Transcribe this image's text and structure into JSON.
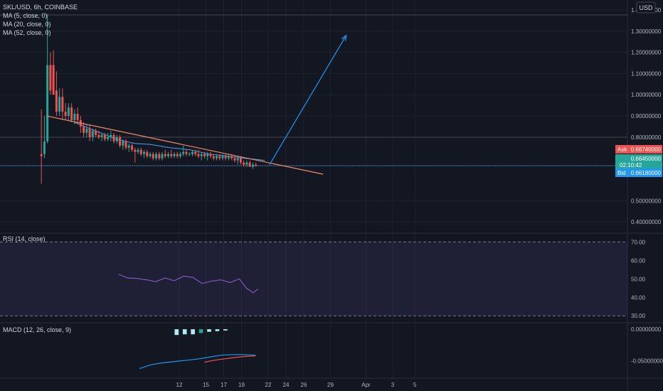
{
  "header": {
    "symbol_line": "SKL/USD, 6h, COINBASE",
    "indicators": [
      "MA (5, close, 0)",
      "MA (20, close, 0)",
      "MA (52, close, 0)"
    ],
    "currency": "USD"
  },
  "price_badges": {
    "ask_label": "Ask",
    "ask_value": "0.66740000",
    "last_value": "0.66450000",
    "countdown": "02:10:42",
    "bid_label": "Bid",
    "bid_value": "0.66180000"
  },
  "rsi_pane": {
    "label": "RSI (14, close)",
    "upper_band": 70,
    "lower_band": 30
  },
  "macd_pane": {
    "label": "MACD (12, 26, close, 9)"
  },
  "x_axis": {
    "ticks": [
      "12",
      "15",
      "17",
      "19",
      "22",
      "24",
      "26",
      "29",
      "Apr",
      "3",
      "5"
    ]
  },
  "colors": {
    "background": "#131722",
    "up": "#26a69a",
    "down": "#ef5350",
    "ask": "#ef5350",
    "bid": "#2196f3",
    "last": "#26a69a",
    "rsi_line": "#7e57c2",
    "rsi_band": "#7e57c2",
    "macd_line": "#2196f3",
    "signal_line": "#ef5350",
    "ma_line": "#42a5f5",
    "trendline": "#f48a6b",
    "arrow": "#2196f3"
  },
  "chart_data": [
    {
      "type": "candlestick",
      "title": "SKL/USD, 6h, COINBASE",
      "y_ticks": [
        0.4,
        0.5,
        0.8,
        0.9,
        1.0,
        1.1,
        1.2,
        1.3,
        1.4
      ],
      "y_tick_labels": [
        "0.40000000",
        "0.50000000",
        "0.80000000",
        "0.90000000",
        "1.00000000",
        "1.10000000",
        "1.20000000",
        "1.30000000",
        "1.40000000"
      ],
      "ylim": [
        0.35,
        1.42
      ],
      "x_range": [
        10,
        37
      ],
      "candles": [
        {
          "x": 11.78,
          "o": 0.72,
          "h": 0.93,
          "l": 0.58,
          "c": 0.71
        },
        {
          "x": 11.91,
          "o": 0.72,
          "h": 0.9,
          "l": 0.7,
          "c": 0.78
        },
        {
          "x": 12.04,
          "o": 0.78,
          "h": 1.38,
          "l": 0.77,
          "c": 1.14
        },
        {
          "x": 12.17,
          "o": 1.14,
          "h": 1.2,
          "l": 1.0,
          "c": 1.02
        },
        {
          "x": 12.3,
          "o": 1.14,
          "h": 1.21,
          "l": 1.0,
          "c": 1.0
        },
        {
          "x": 12.43,
          "o": 1.02,
          "h": 1.11,
          "l": 0.9,
          "c": 0.92
        },
        {
          "x": 12.56,
          "o": 0.92,
          "h": 1.03,
          "l": 0.9,
          "c": 0.99
        },
        {
          "x": 12.69,
          "o": 0.99,
          "h": 1.03,
          "l": 0.88,
          "c": 0.92
        },
        {
          "x": 12.82,
          "o": 0.92,
          "h": 0.96,
          "l": 0.88,
          "c": 0.9
        },
        {
          "x": 12.95,
          "o": 0.9,
          "h": 0.96,
          "l": 0.88,
          "c": 0.94
        },
        {
          "x": 13.08,
          "o": 0.94,
          "h": 0.96,
          "l": 0.87,
          "c": 0.88
        },
        {
          "x": 13.21,
          "o": 0.88,
          "h": 0.93,
          "l": 0.86,
          "c": 0.91
        },
        {
          "x": 13.34,
          "o": 0.91,
          "h": 0.94,
          "l": 0.86,
          "c": 0.88
        },
        {
          "x": 13.47,
          "o": 0.88,
          "h": 0.9,
          "l": 0.82,
          "c": 0.85
        },
        {
          "x": 13.6,
          "o": 0.85,
          "h": 0.87,
          "l": 0.8,
          "c": 0.82
        },
        {
          "x": 13.73,
          "o": 0.82,
          "h": 0.86,
          "l": 0.8,
          "c": 0.84
        },
        {
          "x": 13.86,
          "o": 0.84,
          "h": 0.86,
          "l": 0.78,
          "c": 0.8
        },
        {
          "x": 13.99,
          "o": 0.8,
          "h": 0.84,
          "l": 0.78,
          "c": 0.83
        },
        {
          "x": 14.12,
          "o": 0.83,
          "h": 0.84,
          "l": 0.8,
          "c": 0.81
        },
        {
          "x": 14.25,
          "o": 0.81,
          "h": 0.83,
          "l": 0.79,
          "c": 0.8
        },
        {
          "x": 14.38,
          "o": 0.8,
          "h": 0.82,
          "l": 0.78,
          "c": 0.81
        },
        {
          "x": 14.51,
          "o": 0.81,
          "h": 0.82,
          "l": 0.78,
          "c": 0.79
        },
        {
          "x": 14.64,
          "o": 0.79,
          "h": 0.82,
          "l": 0.78,
          "c": 0.8
        },
        {
          "x": 14.77,
          "o": 0.8,
          "h": 0.83,
          "l": 0.78,
          "c": 0.81
        },
        {
          "x": 14.9,
          "o": 0.81,
          "h": 0.82,
          "l": 0.77,
          "c": 0.78
        },
        {
          "x": 15.03,
          "o": 0.78,
          "h": 0.81,
          "l": 0.77,
          "c": 0.8
        },
        {
          "x": 15.16,
          "o": 0.8,
          "h": 0.81,
          "l": 0.75,
          "c": 0.76
        },
        {
          "x": 15.29,
          "o": 0.76,
          "h": 0.79,
          "l": 0.74,
          "c": 0.78
        },
        {
          "x": 15.42,
          "o": 0.78,
          "h": 0.79,
          "l": 0.74,
          "c": 0.75
        },
        {
          "x": 15.55,
          "o": 0.75,
          "h": 0.77,
          "l": 0.73,
          "c": 0.76
        },
        {
          "x": 15.68,
          "o": 0.76,
          "h": 0.77,
          "l": 0.73,
          "c": 0.74
        },
        {
          "x": 15.81,
          "o": 0.74,
          "h": 0.75,
          "l": 0.68,
          "c": 0.73
        },
        {
          "x": 15.94,
          "o": 0.73,
          "h": 0.75,
          "l": 0.72,
          "c": 0.74
        },
        {
          "x": 16.07,
          "o": 0.74,
          "h": 0.75,
          "l": 0.71,
          "c": 0.72
        },
        {
          "x": 16.2,
          "o": 0.72,
          "h": 0.74,
          "l": 0.7,
          "c": 0.73
        },
        {
          "x": 16.33,
          "o": 0.73,
          "h": 0.74,
          "l": 0.7,
          "c": 0.71
        },
        {
          "x": 16.46,
          "o": 0.71,
          "h": 0.73,
          "l": 0.7,
          "c": 0.72
        },
        {
          "x": 16.59,
          "o": 0.72,
          "h": 0.73,
          "l": 0.69,
          "c": 0.7
        },
        {
          "x": 16.72,
          "o": 0.7,
          "h": 0.73,
          "l": 0.69,
          "c": 0.72
        },
        {
          "x": 16.85,
          "o": 0.72,
          "h": 0.73,
          "l": 0.69,
          "c": 0.7
        },
        {
          "x": 16.98,
          "o": 0.7,
          "h": 0.73,
          "l": 0.69,
          "c": 0.72
        },
        {
          "x": 17.11,
          "o": 0.72,
          "h": 0.74,
          "l": 0.7,
          "c": 0.71
        },
        {
          "x": 17.24,
          "o": 0.71,
          "h": 0.73,
          "l": 0.7,
          "c": 0.72
        },
        {
          "x": 17.37,
          "o": 0.72,
          "h": 0.74,
          "l": 0.7,
          "c": 0.71
        },
        {
          "x": 17.5,
          "o": 0.71,
          "h": 0.73,
          "l": 0.7,
          "c": 0.72
        },
        {
          "x": 17.63,
          "o": 0.72,
          "h": 0.73,
          "l": 0.7,
          "c": 0.71
        },
        {
          "x": 17.76,
          "o": 0.71,
          "h": 0.73,
          "l": 0.7,
          "c": 0.72
        },
        {
          "x": 17.89,
          "o": 0.72,
          "h": 0.76,
          "l": 0.71,
          "c": 0.73
        },
        {
          "x": 18.02,
          "o": 0.73,
          "h": 0.74,
          "l": 0.71,
          "c": 0.72
        },
        {
          "x": 18.15,
          "o": 0.72,
          "h": 0.73,
          "l": 0.71,
          "c": 0.72
        },
        {
          "x": 18.28,
          "o": 0.72,
          "h": 0.74,
          "l": 0.71,
          "c": 0.73
        },
        {
          "x": 18.41,
          "o": 0.73,
          "h": 0.74,
          "l": 0.71,
          "c": 0.72
        },
        {
          "x": 18.54,
          "o": 0.72,
          "h": 0.74,
          "l": 0.7,
          "c": 0.71
        },
        {
          "x": 18.67,
          "o": 0.71,
          "h": 0.73,
          "l": 0.69,
          "c": 0.72
        },
        {
          "x": 18.8,
          "o": 0.72,
          "h": 0.73,
          "l": 0.7,
          "c": 0.71
        },
        {
          "x": 18.93,
          "o": 0.71,
          "h": 0.73,
          "l": 0.69,
          "c": 0.72
        },
        {
          "x": 19.06,
          "o": 0.72,
          "h": 0.73,
          "l": 0.7,
          "c": 0.71
        },
        {
          "x": 19.19,
          "o": 0.71,
          "h": 0.72,
          "l": 0.69,
          "c": 0.7
        },
        {
          "x": 19.32,
          "o": 0.7,
          "h": 0.72,
          "l": 0.69,
          "c": 0.71
        },
        {
          "x": 19.45,
          "o": 0.71,
          "h": 0.72,
          "l": 0.69,
          "c": 0.7
        },
        {
          "x": 19.58,
          "o": 0.7,
          "h": 0.72,
          "l": 0.69,
          "c": 0.71
        },
        {
          "x": 19.71,
          "o": 0.71,
          "h": 0.72,
          "l": 0.69,
          "c": 0.7
        },
        {
          "x": 19.84,
          "o": 0.7,
          "h": 0.72,
          "l": 0.69,
          "c": 0.71
        },
        {
          "x": 19.97,
          "o": 0.71,
          "h": 0.72,
          "l": 0.69,
          "c": 0.7
        },
        {
          "x": 20.1,
          "o": 0.7,
          "h": 0.71,
          "l": 0.68,
          "c": 0.69
        },
        {
          "x": 20.23,
          "o": 0.69,
          "h": 0.71,
          "l": 0.67,
          "c": 0.7
        },
        {
          "x": 20.36,
          "o": 0.7,
          "h": 0.71,
          "l": 0.67,
          "c": 0.68
        },
        {
          "x": 20.49,
          "o": 0.68,
          "h": 0.69,
          "l": 0.66,
          "c": 0.67
        },
        {
          "x": 20.62,
          "o": 0.67,
          "h": 0.69,
          "l": 0.66,
          "c": 0.68
        },
        {
          "x": 20.75,
          "o": 0.68,
          "h": 0.69,
          "l": 0.66,
          "c": 0.66
        },
        {
          "x": 20.88,
          "o": 0.66,
          "h": 0.68,
          "l": 0.65,
          "c": 0.67
        },
        {
          "x": 21.01,
          "o": 0.67,
          "h": 0.68,
          "l": 0.66,
          "c": 0.665
        }
      ],
      "ma_line": [
        [
          13.2,
          0.87
        ],
        [
          14.1,
          0.83
        ],
        [
          15.0,
          0.79
        ],
        [
          15.8,
          0.77
        ],
        [
          16.5,
          0.765
        ],
        [
          17.3,
          0.75
        ],
        [
          18.2,
          0.74
        ],
        [
          19.0,
          0.72
        ],
        [
          19.8,
          0.71
        ],
        [
          20.5,
          0.7
        ],
        [
          21.0,
          0.695
        ],
        [
          21.4,
          0.69
        ]
      ],
      "trendline": [
        [
          12.0,
          0.9
        ],
        [
          23.9,
          0.625
        ]
      ],
      "projection_arrow": [
        [
          21.6,
          0.67
        ],
        [
          24.9,
          1.28
        ]
      ],
      "current_price": 0.6645
    },
    {
      "type": "line",
      "title": "RSI (14, close)",
      "y_ticks": [
        30,
        40,
        50,
        60,
        70
      ],
      "y_tick_labels": [
        "30.00",
        "40.00",
        "50.00",
        "60.00",
        "70.00"
      ],
      "ylim": [
        27,
        74
      ],
      "x": [
        15.1,
        15.5,
        15.9,
        16.3,
        16.7,
        17.1,
        17.5,
        17.9,
        18.3,
        18.7,
        19.1,
        19.5,
        19.9,
        20.3,
        20.6,
        20.9,
        21.1
      ],
      "values": [
        52.5,
        50.5,
        50.2,
        49.5,
        48.5,
        50.5,
        49.0,
        51.5,
        50.8,
        47.5,
        48.8,
        49.5,
        48.0,
        50.0,
        45.0,
        42.5,
        44.5
      ]
    },
    {
      "type": "line",
      "title": "MACD (12, 26, close, 9)",
      "y_ticks": [
        0,
        -0.05
      ],
      "y_tick_labels": [
        "0.00000000",
        "-0.05000000"
      ],
      "ylim": [
        -0.075,
        0.008
      ],
      "series": [
        {
          "x": [
            16.0,
            16.5,
            17.0,
            17.5,
            18.0,
            18.5,
            19.0,
            19.5,
            20.0,
            20.5,
            21.0
          ],
          "values": [
            -0.062,
            -0.056,
            -0.053,
            -0.051,
            -0.049,
            -0.047,
            -0.044,
            -0.041,
            -0.04,
            -0.04,
            -0.041
          ]
        },
        {
          "x": [
            18.8,
            19.2,
            19.6,
            20.0,
            20.5,
            21.0
          ],
          "values": [
            -0.052,
            -0.049,
            -0.047,
            -0.045,
            -0.043,
            -0.042
          ]
        }
      ],
      "histogram": [
        {
          "x": 17.6,
          "value": -0.009
        },
        {
          "x": 17.95,
          "value": -0.008
        },
        {
          "x": 18.3,
          "value": -0.008
        },
        {
          "x": 18.65,
          "value": -0.006
        },
        {
          "x": 19.0,
          "value": -0.004
        },
        {
          "x": 19.35,
          "value": -0.003
        },
        {
          "x": 19.7,
          "value": -0.002
        }
      ]
    }
  ]
}
